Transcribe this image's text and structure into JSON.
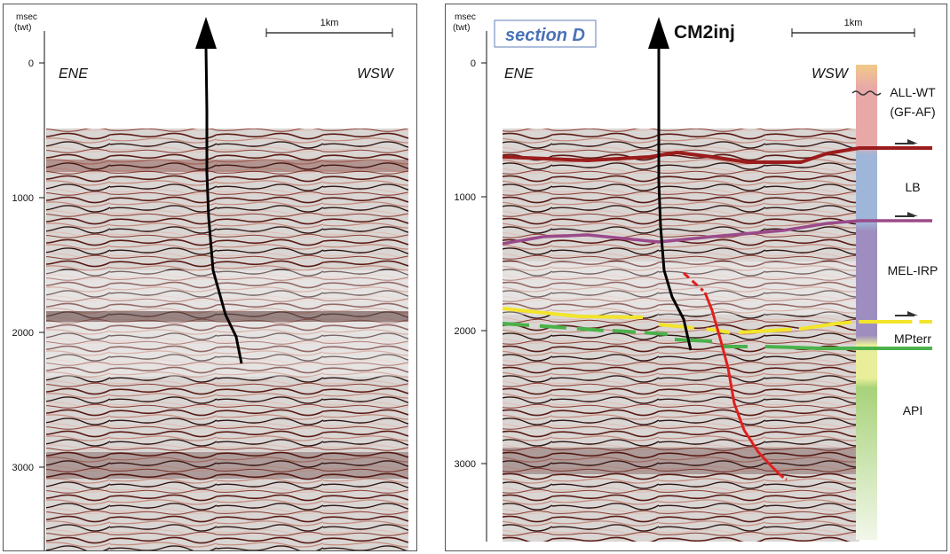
{
  "axis": {
    "unit_line1": "msec",
    "unit_line2": "(twt)",
    "ticks": [
      {
        "value": 0,
        "label": "0"
      },
      {
        "value": 1000,
        "label": "1000"
      },
      {
        "value": 2000,
        "label": "2000"
      },
      {
        "value": 3000,
        "label": "3000"
      }
    ]
  },
  "scale_bar": {
    "label": "1km"
  },
  "directions": {
    "left": "ENE",
    "right": "WSW"
  },
  "section_label": "section D",
  "well_label": "CM2inj",
  "units": [
    {
      "label": "ALL-WT",
      "color": "#e8a8a8"
    },
    {
      "label": "(GF-AF)",
      "color": "#e8a8a8"
    },
    {
      "label": "LB",
      "color": "#9fb6d9"
    },
    {
      "label": "MEL-IRP",
      "color": "#9e8ec0"
    },
    {
      "label": "MPterr",
      "color": "#e9ee9a"
    },
    {
      "label": "API",
      "color": "#a8d27a"
    }
  ],
  "horizon_colors": {
    "top_lb": "#9b1c1c",
    "top_mel": "#9a4a8a",
    "top_mpterr": "#f2e52b",
    "top_api": "#4bb14b",
    "fault": "#e0201e",
    "well": "#000000"
  }
}
